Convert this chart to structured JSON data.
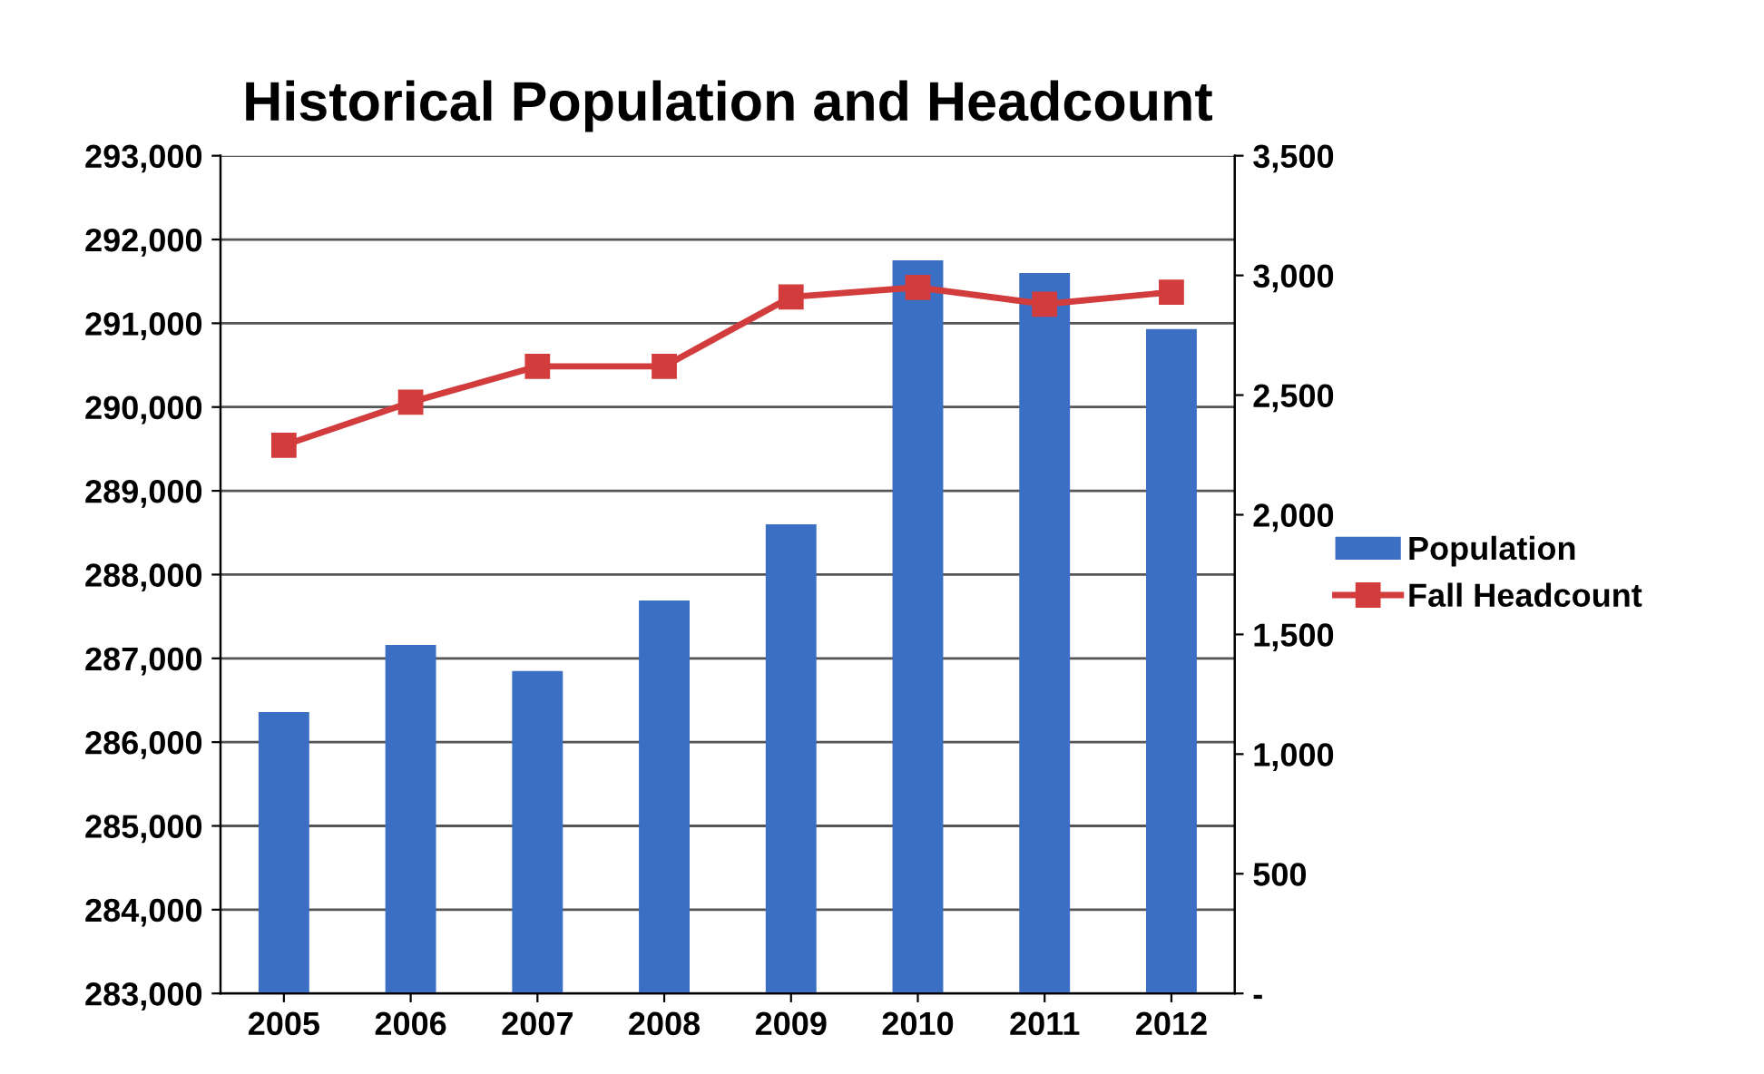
{
  "chart_data": {
    "type": "bar",
    "title": "Historical Population and Headcount",
    "categories": [
      "2005",
      "2006",
      "2007",
      "2008",
      "2009",
      "2010",
      "2011",
      "2012"
    ],
    "series": [
      {
        "name": "Population",
        "color": "#3a6fc4",
        "values": [
          286360,
          287160,
          286850,
          287690,
          288600,
          291750,
          291600,
          290930
        ]
      },
      {
        "name": "Fall Headcount",
        "type": "line",
        "axis": "y2",
        "color": "#d23c3c",
        "values": [
          2290,
          2470,
          2620,
          2620,
          2910,
          2950,
          2880,
          2930
        ]
      }
    ],
    "ylim": [
      283000,
      293000
    ],
    "yticks": [
      {
        "value": 283000,
        "label": "283,000"
      },
      {
        "value": 284000,
        "label": "284,000"
      },
      {
        "value": 285000,
        "label": "285,000"
      },
      {
        "value": 286000,
        "label": "286,000"
      },
      {
        "value": 287000,
        "label": "287,000"
      },
      {
        "value": 288000,
        "label": "288,000"
      },
      {
        "value": 289000,
        "label": "289,000"
      },
      {
        "value": 290000,
        "label": "290,000"
      },
      {
        "value": 291000,
        "label": "291,000"
      },
      {
        "value": 292000,
        "label": "292,000"
      },
      {
        "value": 293000,
        "label": "293,000"
      }
    ],
    "y2lim": [
      0,
      3500
    ],
    "y2ticks": [
      {
        "value": 0,
        "label": "-"
      },
      500,
      {
        "value": 1000,
        "label": "1,000"
      },
      {
        "value": 1500,
        "label": "1,500"
      },
      {
        "value": 2000,
        "label": "2,000"
      },
      {
        "value": 2500,
        "label": "2,500"
      },
      {
        "value": 3000,
        "label": "3,000"
      },
      {
        "value": 3500,
        "label": "3,500"
      }
    ],
    "grid": "y",
    "legend": "right",
    "marker": "square",
    "line_style": "solid"
  }
}
